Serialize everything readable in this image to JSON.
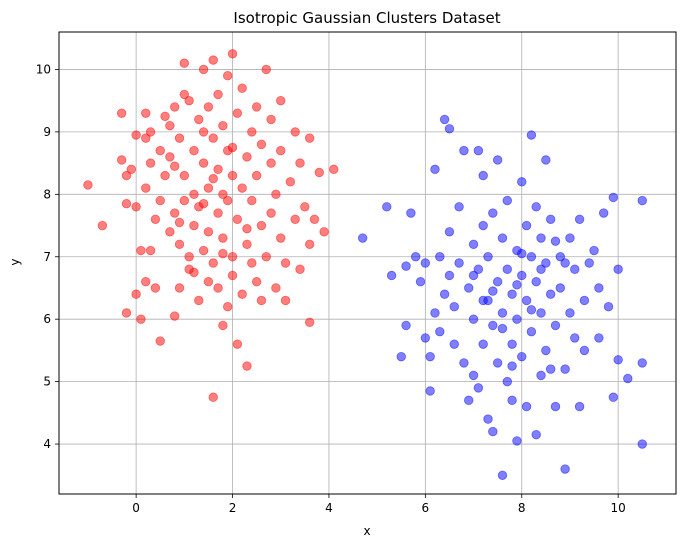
{
  "chart_data": {
    "type": "scatter",
    "title": "Isotropic Gaussian Clusters Dataset",
    "xlabel": "x",
    "ylabel": "y",
    "xlim": [
      -1.6,
      11.2
    ],
    "ylim": [
      3.2,
      10.6
    ],
    "xticks": [
      0,
      2,
      4,
      6,
      8,
      10
    ],
    "yticks": [
      4,
      5,
      6,
      7,
      8,
      9,
      10
    ],
    "grid": true,
    "marker_alpha": 0.5,
    "series": [
      {
        "color": "#ff0000",
        "points": [
          [
            -1.0,
            8.15
          ],
          [
            -0.7,
            7.5
          ],
          [
            -0.3,
            8.55
          ],
          [
            -0.3,
            9.3
          ],
          [
            -0.2,
            6.1
          ],
          [
            -0.2,
            7.85
          ],
          [
            -0.2,
            8.3
          ],
          [
            -0.1,
            8.4
          ],
          [
            0.0,
            8.95
          ],
          [
            0.0,
            7.8
          ],
          [
            0.0,
            6.4
          ],
          [
            0.1,
            7.1
          ],
          [
            0.1,
            6.0
          ],
          [
            0.2,
            9.3
          ],
          [
            0.2,
            8.9
          ],
          [
            0.2,
            8.1
          ],
          [
            0.2,
            6.6
          ],
          [
            0.3,
            7.1
          ],
          [
            0.3,
            8.5
          ],
          [
            0.3,
            9.0
          ],
          [
            0.4,
            7.6
          ],
          [
            0.4,
            6.5
          ],
          [
            0.5,
            8.7
          ],
          [
            0.5,
            7.9
          ],
          [
            0.5,
            5.65
          ],
          [
            0.6,
            9.25
          ],
          [
            0.6,
            8.3
          ],
          [
            0.7,
            7.4
          ],
          [
            0.7,
            8.6
          ],
          [
            0.7,
            9.1
          ],
          [
            0.8,
            9.4
          ],
          [
            0.8,
            7.7
          ],
          [
            0.8,
            6.05
          ],
          [
            0.8,
            8.45
          ],
          [
            0.9,
            8.9
          ],
          [
            0.9,
            7.2
          ],
          [
            0.9,
            6.5
          ],
          [
            1.0,
            7.9
          ],
          [
            1.0,
            9.6
          ],
          [
            1.0,
            10.1
          ],
          [
            1.0,
            8.3
          ],
          [
            1.1,
            7.0
          ],
          [
            1.1,
            6.8
          ],
          [
            1.1,
            9.5
          ],
          [
            1.2,
            8.7
          ],
          [
            1.2,
            7.5
          ],
          [
            1.2,
            8.0
          ],
          [
            1.3,
            9.2
          ],
          [
            1.3,
            6.3
          ],
          [
            1.3,
            7.8
          ],
          [
            1.4,
            8.5
          ],
          [
            1.4,
            10.0
          ],
          [
            1.4,
            7.1
          ],
          [
            1.4,
            9.0
          ],
          [
            1.5,
            6.6
          ],
          [
            1.5,
            8.1
          ],
          [
            1.5,
            7.4
          ],
          [
            1.5,
            9.4
          ],
          [
            1.6,
            8.9
          ],
          [
            1.6,
            6.9
          ],
          [
            1.6,
            10.15
          ],
          [
            1.6,
            4.75
          ],
          [
            1.7,
            7.7
          ],
          [
            1.7,
            8.4
          ],
          [
            1.7,
            9.6
          ],
          [
            1.7,
            6.5
          ],
          [
            1.8,
            8.0
          ],
          [
            1.8,
            7.3
          ],
          [
            1.8,
            9.1
          ],
          [
            1.8,
            5.9
          ],
          [
            1.9,
            8.7
          ],
          [
            1.9,
            7.9
          ],
          [
            1.9,
            6.2
          ],
          [
            1.9,
            9.9
          ],
          [
            2.0,
            10.25
          ],
          [
            2.0,
            8.3
          ],
          [
            2.0,
            7.0
          ],
          [
            2.0,
            6.7
          ],
          [
            2.1,
            9.3
          ],
          [
            2.1,
            7.6
          ],
          [
            2.1,
            5.6
          ],
          [
            2.2,
            8.1
          ],
          [
            2.2,
            6.4
          ],
          [
            2.2,
            9.7
          ],
          [
            2.3,
            5.25
          ],
          [
            2.3,
            8.6
          ],
          [
            2.3,
            7.2
          ],
          [
            2.4,
            9.0
          ],
          [
            2.4,
            7.9
          ],
          [
            2.4,
            6.9
          ],
          [
            2.5,
            8.3
          ],
          [
            2.5,
            9.4
          ],
          [
            2.5,
            6.6
          ],
          [
            2.6,
            7.5
          ],
          [
            2.6,
            8.8
          ],
          [
            2.6,
            6.3
          ],
          [
            2.7,
            10.0
          ],
          [
            2.7,
            7.0
          ],
          [
            2.8,
            8.5
          ],
          [
            2.8,
            9.2
          ],
          [
            2.8,
            7.7
          ],
          [
            2.9,
            6.5
          ],
          [
            2.9,
            8.0
          ],
          [
            3.0,
            9.5
          ],
          [
            3.0,
            7.3
          ],
          [
            3.0,
            8.7
          ],
          [
            3.1,
            6.9
          ],
          [
            3.1,
            6.3
          ],
          [
            3.2,
            8.2
          ],
          [
            3.3,
            7.6
          ],
          [
            3.3,
            9.0
          ],
          [
            3.4,
            8.5
          ],
          [
            3.4,
            6.8
          ],
          [
            3.5,
            7.8
          ],
          [
            3.6,
            8.9
          ],
          [
            3.6,
            5.95
          ],
          [
            3.6,
            7.2
          ],
          [
            3.7,
            7.6
          ],
          [
            3.8,
            8.35
          ],
          [
            3.9,
            7.4
          ],
          [
            4.1,
            8.4
          ],
          [
            0.9,
            7.55
          ],
          [
            1.2,
            6.75
          ],
          [
            1.6,
            8.25
          ],
          [
            2.0,
            8.75
          ],
          [
            2.3,
            7.45
          ],
          [
            1.4,
            7.85
          ],
          [
            1.8,
            7.05
          ]
        ]
      },
      {
        "color": "#0000ff",
        "points": [
          [
            4.7,
            7.3
          ],
          [
            5.2,
            7.8
          ],
          [
            5.3,
            6.7
          ],
          [
            5.5,
            5.4
          ],
          [
            5.6,
            6.85
          ],
          [
            5.6,
            5.9
          ],
          [
            5.7,
            7.7
          ],
          [
            5.8,
            7.0
          ],
          [
            5.9,
            6.6
          ],
          [
            6.0,
            5.7
          ],
          [
            6.0,
            6.9
          ],
          [
            6.1,
            4.85
          ],
          [
            6.1,
            5.4
          ],
          [
            6.2,
            8.4
          ],
          [
            6.2,
            6.1
          ],
          [
            6.3,
            7.0
          ],
          [
            6.3,
            5.8
          ],
          [
            6.4,
            6.4
          ],
          [
            6.4,
            9.2
          ],
          [
            6.5,
            9.05
          ],
          [
            6.5,
            6.7
          ],
          [
            6.5,
            7.4
          ],
          [
            6.6,
            5.6
          ],
          [
            6.6,
            6.2
          ],
          [
            6.7,
            7.8
          ],
          [
            6.7,
            6.9
          ],
          [
            6.8,
            5.3
          ],
          [
            6.8,
            8.7
          ],
          [
            6.9,
            6.5
          ],
          [
            6.9,
            4.7
          ],
          [
            7.0,
            7.2
          ],
          [
            7.0,
            6.0
          ],
          [
            7.0,
            5.1
          ],
          [
            7.1,
            8.7
          ],
          [
            7.1,
            6.8
          ],
          [
            7.1,
            4.9
          ],
          [
            7.2,
            7.5
          ],
          [
            7.2,
            5.6
          ],
          [
            7.2,
            8.3
          ],
          [
            7.3,
            6.3
          ],
          [
            7.3,
            4.4
          ],
          [
            7.3,
            7.0
          ],
          [
            7.4,
            5.9
          ],
          [
            7.4,
            7.7
          ],
          [
            7.4,
            4.2
          ],
          [
            7.5,
            6.6
          ],
          [
            7.5,
            8.55
          ],
          [
            7.5,
            5.3
          ],
          [
            7.6,
            7.3
          ],
          [
            7.6,
            6.1
          ],
          [
            7.6,
            3.5
          ],
          [
            7.7,
            6.8
          ],
          [
            7.7,
            5.0
          ],
          [
            7.7,
            7.9
          ],
          [
            7.8,
            6.4
          ],
          [
            7.8,
            5.6
          ],
          [
            7.8,
            4.7
          ],
          [
            7.9,
            7.1
          ],
          [
            7.9,
            6.0
          ],
          [
            7.9,
            4.05
          ],
          [
            8.0,
            8.2
          ],
          [
            8.0,
            6.7
          ],
          [
            8.0,
            5.4
          ],
          [
            8.1,
            7.5
          ],
          [
            8.1,
            6.3
          ],
          [
            8.1,
            4.6
          ],
          [
            8.2,
            8.95
          ],
          [
            8.2,
            7.0
          ],
          [
            8.2,
            5.8
          ],
          [
            8.3,
            6.6
          ],
          [
            8.3,
            7.8
          ],
          [
            8.3,
            4.15
          ],
          [
            8.4,
            6.1
          ],
          [
            8.4,
            5.1
          ],
          [
            8.4,
            7.3
          ],
          [
            8.5,
            8.55
          ],
          [
            8.5,
            6.9
          ],
          [
            8.5,
            5.5
          ],
          [
            8.6,
            6.4
          ],
          [
            8.6,
            7.6
          ],
          [
            8.7,
            5.9
          ],
          [
            8.7,
            4.6
          ],
          [
            8.8,
            7.0
          ],
          [
            8.8,
            6.5
          ],
          [
            8.9,
            3.6
          ],
          [
            8.9,
            5.2
          ],
          [
            9.0,
            7.3
          ],
          [
            9.0,
            6.1
          ],
          [
            9.1,
            5.7
          ],
          [
            9.1,
            6.8
          ],
          [
            9.2,
            4.6
          ],
          [
            9.2,
            7.6
          ],
          [
            9.3,
            6.3
          ],
          [
            9.3,
            5.5
          ],
          [
            9.4,
            6.9
          ],
          [
            9.5,
            7.1
          ],
          [
            9.6,
            5.7
          ],
          [
            9.6,
            6.5
          ],
          [
            9.7,
            7.7
          ],
          [
            9.8,
            6.2
          ],
          [
            9.9,
            7.95
          ],
          [
            9.9,
            4.75
          ],
          [
            10.0,
            5.35
          ],
          [
            10.0,
            6.8
          ],
          [
            10.2,
            5.05
          ],
          [
            10.5,
            7.9
          ],
          [
            10.5,
            5.3
          ],
          [
            10.5,
            4.0
          ],
          [
            7.4,
            6.45
          ],
          [
            7.9,
            6.55
          ],
          [
            8.2,
            6.15
          ],
          [
            7.6,
            5.85
          ],
          [
            8.6,
            5.2
          ],
          [
            8.0,
            7.05
          ],
          [
            7.2,
            6.3
          ],
          [
            8.9,
            6.9
          ],
          [
            7.8,
            5.25
          ],
          [
            8.4,
            6.8
          ],
          [
            7.0,
            6.7
          ],
          [
            8.7,
            7.25
          ]
        ]
      }
    ]
  }
}
